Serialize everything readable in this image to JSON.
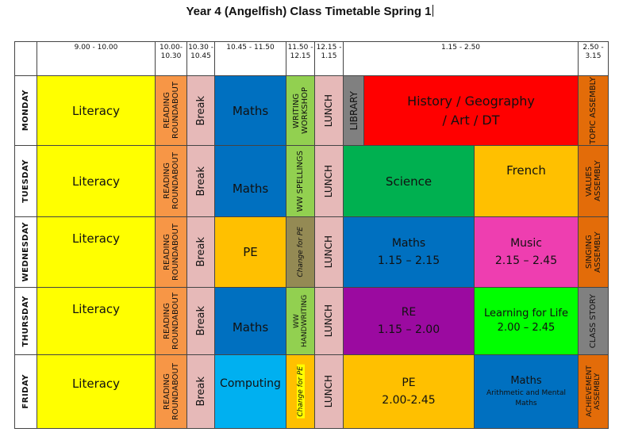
{
  "title": "Year 4 (Angelfish) Class Timetable Spring 1",
  "headers": {
    "t1": "9.00 - 10.00",
    "t2": "10.00- 10.30",
    "t3": "10.30 - 10.45",
    "t4": "10.45 - 11.50",
    "t5": "11.50 - 12.15",
    "t6": "12.15 - 1.15",
    "t7": "1.15 - 2.50",
    "t8": "2.50 - 3.15"
  },
  "days": [
    "MONDAY",
    "TUESDAY",
    "WEDNESDAY",
    "THURSDAY",
    "FRIDAY"
  ],
  "common": {
    "literacy": "Literacy",
    "reading": "READING ROUNDABOUT",
    "break": "Break",
    "lunch": "LUNCH"
  },
  "monday": {
    "period3": "Maths",
    "period4": "WRITING WORKSHOP",
    "library": "LIBRARY",
    "afternoon": "History / Geography / Art / DT",
    "assembly": "TOPIC ASSEMBLY"
  },
  "tuesday": {
    "period3": "Maths",
    "period4": "WW SPELLINGS",
    "afternoon1": "Science",
    "afternoon2": "French",
    "assembly": "VALUES ASSEMBLY"
  },
  "wednesday": {
    "period3": "PE",
    "period4": "Change for PE",
    "afternoon1_subject": "Maths",
    "afternoon1_time": "1.15 – 2.15",
    "afternoon2_subject": "Music",
    "afternoon2_time": "2.15 – 2.45",
    "assembly": "SINGING ASSEMBLY"
  },
  "thursday": {
    "period3": "Maths",
    "period4": "WW HANDWRITING",
    "afternoon1_subject": "RE",
    "afternoon1_time": "1.15 – 2.00",
    "afternoon2_subject": "Learning for Life",
    "afternoon2_time": "2.00 – 2.45",
    "assembly": "CLASS STORY"
  },
  "friday": {
    "period3": "Computing",
    "period4": "Change for PE",
    "afternoon1_subject": "PE",
    "afternoon1_time": "2.00-2.45",
    "afternoon2_subject": "Maths",
    "afternoon2_detail": "Arithmetic and Mental Maths",
    "assembly": "ACHIEVEMENT ASSEMBLY"
  },
  "colors": {
    "literacy": "#ffff00",
    "reading": "#f79646",
    "break": "#e6b9b8",
    "maths": "#0070c0",
    "writing": "#92d050",
    "library": "#808080",
    "topic": "#ff0000",
    "assembly": "#e36c09",
    "science": "#00b050",
    "french": "#ffc000",
    "change_pe": "#948a54",
    "re": "#9b0aa0",
    "learning_for_life": "#00ff00",
    "computing": "#00b0f0",
    "music": "#ee3eb0"
  }
}
